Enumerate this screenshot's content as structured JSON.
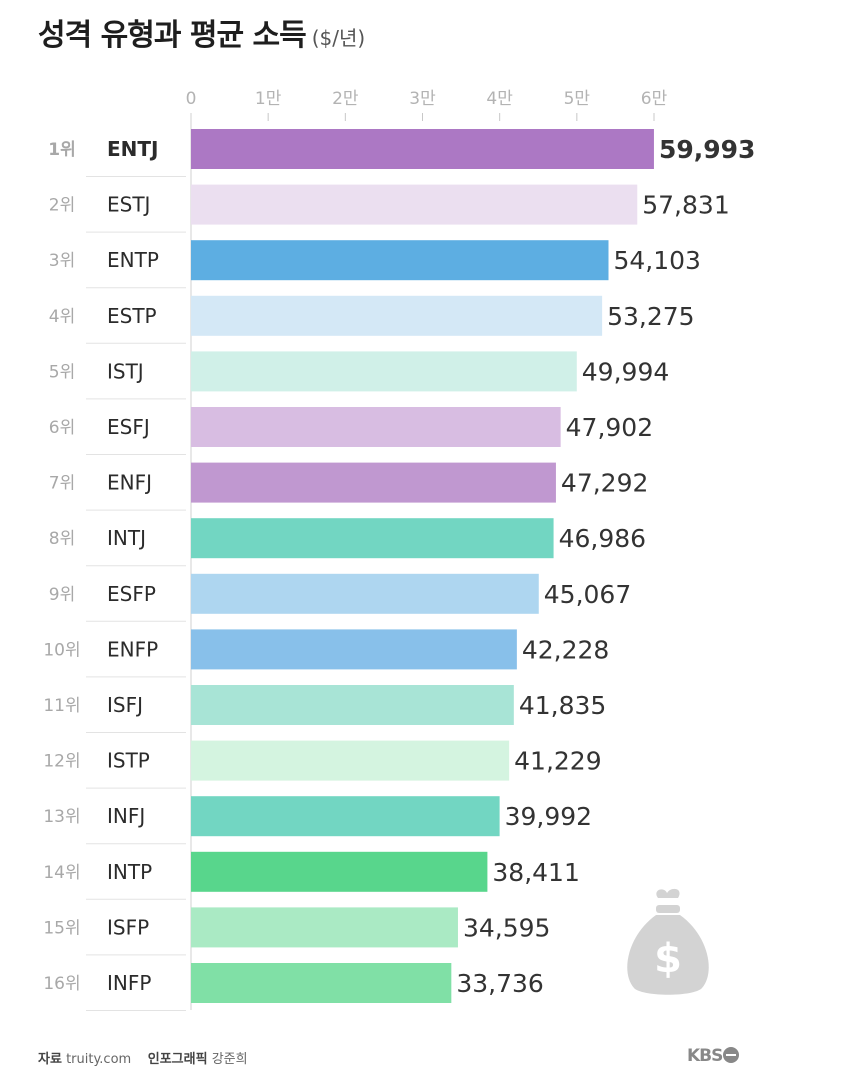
{
  "chart_data": {
    "type": "bar",
    "orientation": "horizontal",
    "title": "성격 유형과 평균 소득",
    "unit": "($/년)",
    "xlim": [
      0,
      60000
    ],
    "ticks": [
      {
        "value": 0,
        "label": "0"
      },
      {
        "value": 10000,
        "label": "1만"
      },
      {
        "value": 20000,
        "label": "2만"
      },
      {
        "value": 30000,
        "label": "3만"
      },
      {
        "value": 40000,
        "label": "4만"
      },
      {
        "value": 50000,
        "label": "5만"
      },
      {
        "value": 60000,
        "label": "6만"
      }
    ],
    "rows": [
      {
        "rank": "1위",
        "type": "ENTJ",
        "value": 59993,
        "label": "59,993",
        "color": "#ac78c4",
        "highlight": true
      },
      {
        "rank": "2위",
        "type": "ESTJ",
        "value": 57831,
        "label": "57,831",
        "color": "#ebdff0"
      },
      {
        "rank": "3위",
        "type": "ENTP",
        "value": 54103,
        "label": "54,103",
        "color": "#5daee2"
      },
      {
        "rank": "4위",
        "type": "ESTP",
        "value": 53275,
        "label": "53,275",
        "color": "#d4e8f6"
      },
      {
        "rank": "5위",
        "type": "ISTJ",
        "value": 49994,
        "label": "49,994",
        "color": "#d0f0e8"
      },
      {
        "rank": "6위",
        "type": "ESFJ",
        "value": 47902,
        "label": "47,902",
        "color": "#d8bde2"
      },
      {
        "rank": "7위",
        "type": "ENFJ",
        "value": 47292,
        "label": "47,292",
        "color": "#c098d0"
      },
      {
        "rank": "8위",
        "type": "INTJ",
        "value": 46986,
        "label": "46,986",
        "color": "#72d6c2"
      },
      {
        "rank": "9위",
        "type": "ESFP",
        "value": 45067,
        "label": "45,067",
        "color": "#aed6f0"
      },
      {
        "rank": "10위",
        "type": "ENFP",
        "value": 42228,
        "label": "42,228",
        "color": "#88c0ea"
      },
      {
        "rank": "11위",
        "type": "ISFJ",
        "value": 41835,
        "label": "41,835",
        "color": "#a8e4d6"
      },
      {
        "rank": "12위",
        "type": "ISTP",
        "value": 41229,
        "label": "41,229",
        "color": "#d4f4e0"
      },
      {
        "rank": "13위",
        "type": "INFJ",
        "value": 39992,
        "label": "39,992",
        "color": "#72d6c2"
      },
      {
        "rank": "14위",
        "type": "INTP",
        "value": 38411,
        "label": "38,411",
        "color": "#58d68c"
      },
      {
        "rank": "15위",
        "type": "ISFP",
        "value": 34595,
        "label": "34,595",
        "color": "#aaeac4"
      },
      {
        "rank": "16위",
        "type": "INFP",
        "value": 33736,
        "label": "33,736",
        "color": "#80e0a6"
      }
    ],
    "highlight_color": "#a56bbf"
  },
  "footer": {
    "source_key": "자료",
    "source_value": "truity.com",
    "credit_key": "인포그래픽",
    "credit_value": "강준희",
    "logo_text": "KBS"
  },
  "decor": {
    "icon": "money-bag-icon",
    "icon_symbol": "$",
    "icon_color": "#d3d3d3"
  }
}
